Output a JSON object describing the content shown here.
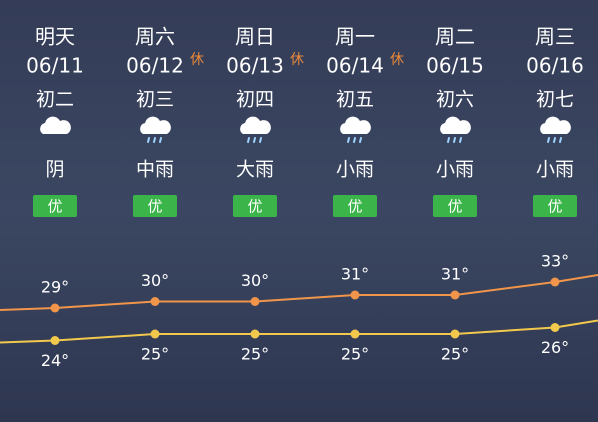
{
  "days": [
    {
      "day": "明天",
      "date": "06/11",
      "lunar": "初二",
      "weather": "阴",
      "aqi": "优"
    },
    {
      "day": "周六",
      "date": "06/12",
      "holiday": "休",
      "lunar": "初三",
      "weather": "中雨",
      "aqi": "优"
    },
    {
      "day": "周日",
      "date": "06/13",
      "holiday": "休",
      "lunar": "初四",
      "weather": "大雨",
      "aqi": "优"
    },
    {
      "day": "周一",
      "date": "06/14",
      "holiday": "休",
      "lunar": "初五",
      "weather": "小雨",
      "aqi": "优"
    },
    {
      "day": "周二",
      "date": "06/15",
      "lunar": "初六",
      "weather": "小雨",
      "aqi": "优"
    },
    {
      "day": "周三",
      "date": "06/16",
      "lunar": "初七",
      "weather": "小雨",
      "aqi": "优"
    }
  ],
  "chart_data": {
    "type": "line",
    "series": [
      {
        "color": "#f0954a",
        "values": [
          29,
          30,
          30,
          31,
          31,
          33
        ],
        "value_labels": [
          "29°",
          "30°",
          "30°",
          "31°",
          "31°",
          "33°"
        ]
      },
      {
        "color": "#f2c94c",
        "values": [
          24,
          25,
          25,
          25,
          25,
          26
        ],
        "value_labels": [
          "24°",
          "25°",
          "25°",
          "25°",
          "25°",
          "26°"
        ]
      }
    ]
  }
}
